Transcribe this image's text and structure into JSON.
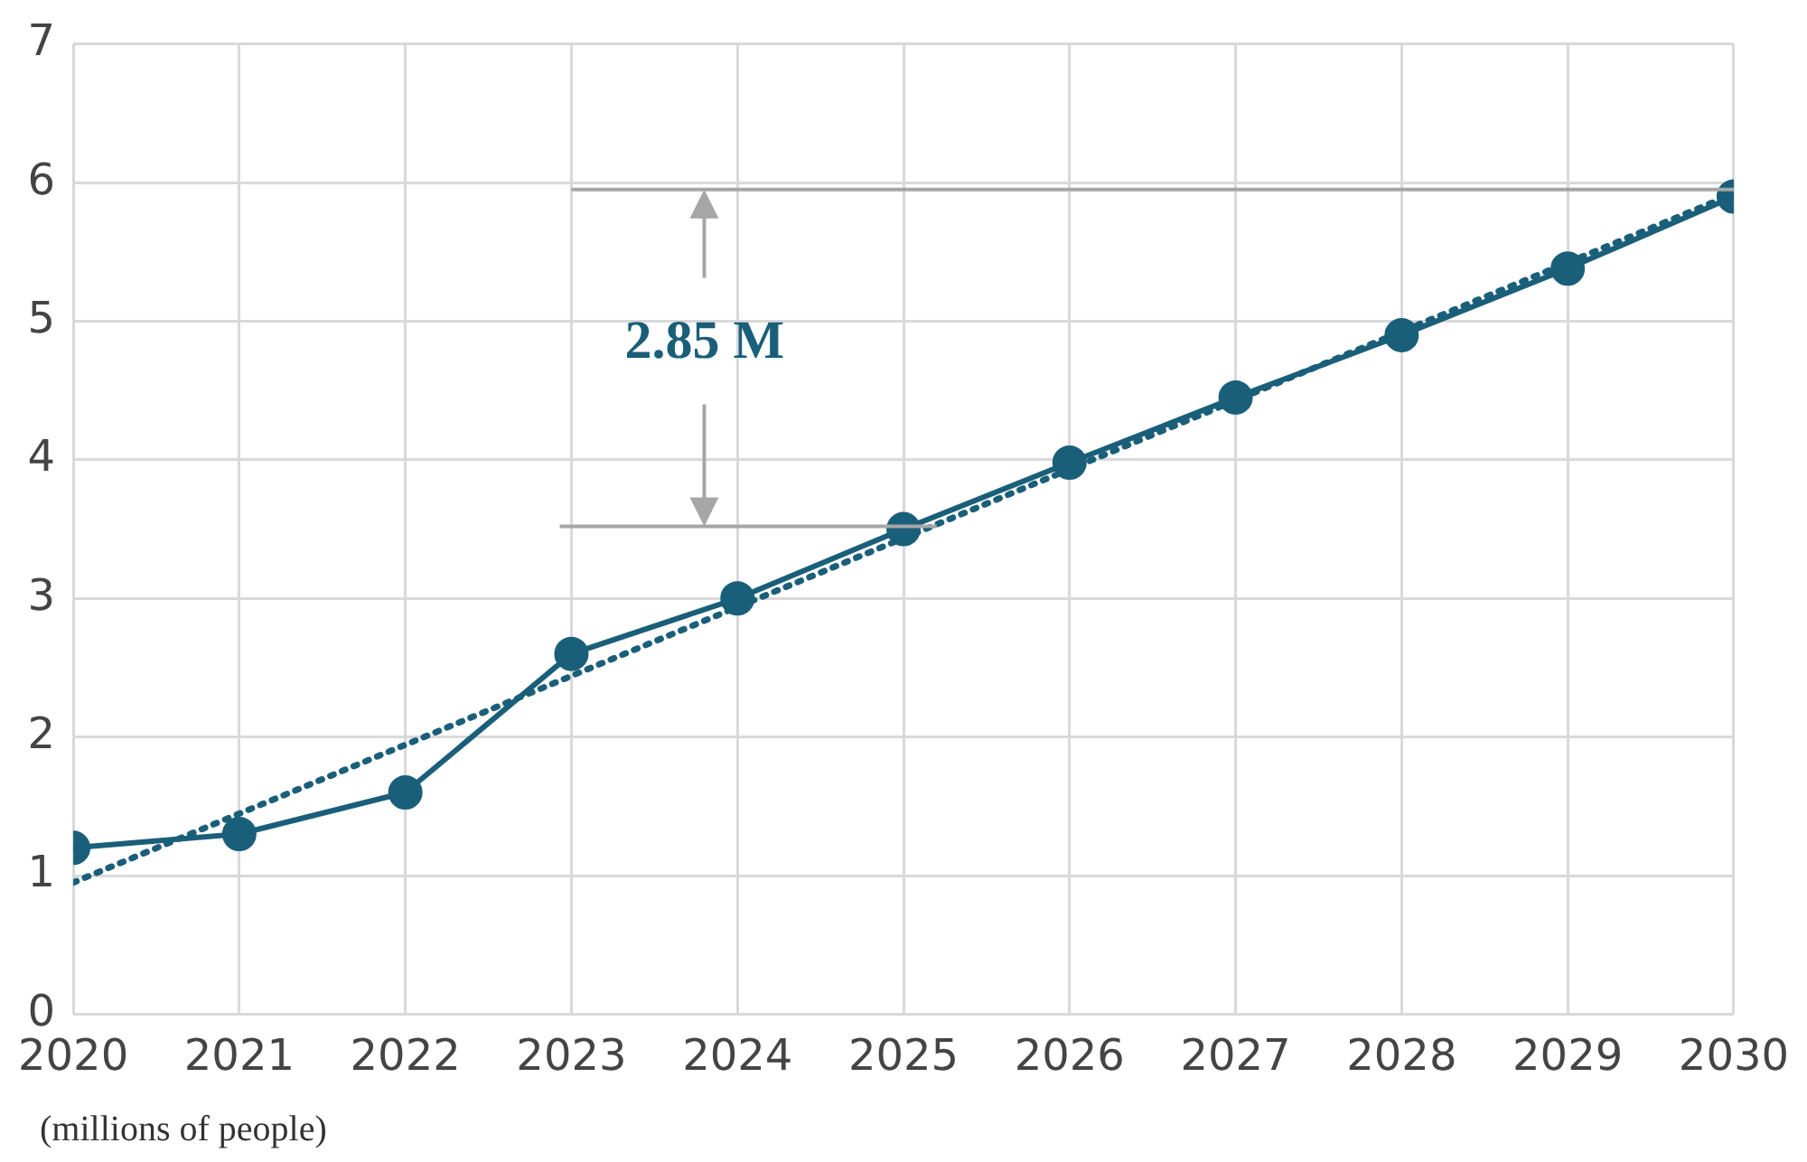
{
  "chart_data": {
    "type": "line",
    "x": [
      2020,
      2021,
      2022,
      2023,
      2024,
      2025,
      2026,
      2027,
      2028,
      2029,
      2030
    ],
    "series": [
      {
        "color": "#1a5f7a",
        "values": [
          1.2,
          1.3,
          1.6,
          2.6,
          3.0,
          3.5,
          3.98,
          4.45,
          4.9,
          5.38,
          5.9
        ],
        "marker": "circle",
        "line_style": "solid"
      },
      {
        "type": "line",
        "color": "#1a5f7a",
        "x": [
          2020,
          2030
        ],
        "values": [
          0.95,
          5.92
        ],
        "marker": "none",
        "line_style": "dotted"
      }
    ],
    "xlim": [
      2020,
      2030
    ],
    "xticks": [
      2020,
      2021,
      2022,
      2023,
      2024,
      2025,
      2026,
      2027,
      2028,
      2029,
      2030
    ],
    "ylim": [
      0,
      7
    ],
    "yticks": [
      0,
      1,
      2,
      3,
      4,
      5,
      6,
      7
    ],
    "grid": true,
    "legend": false,
    "ref_lines": [
      {
        "axis": "y",
        "value": 5.95,
        "color": "#a6a6a6"
      },
      {
        "axis": "y",
        "value": 3.52,
        "color": "#a6a6a6"
      }
    ],
    "annotations": [
      {
        "text": "2.85 M",
        "x": 2023.8,
        "y": 5.95
      },
      "(millions of people)"
    ]
  }
}
